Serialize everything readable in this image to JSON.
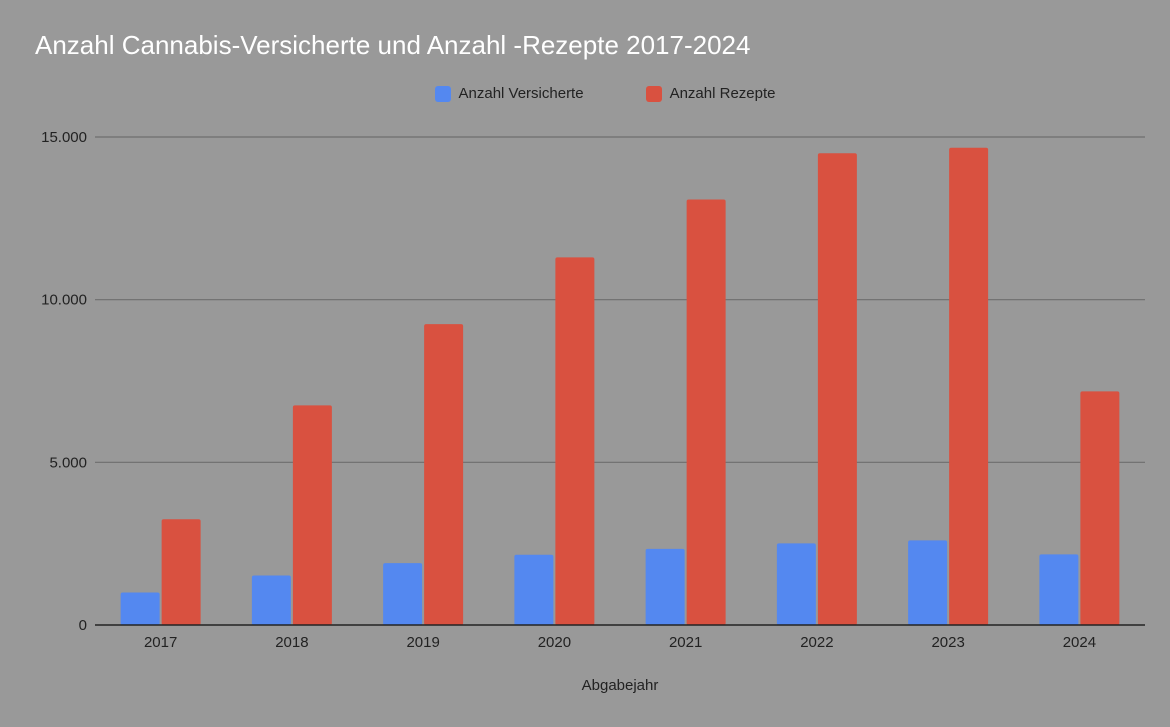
{
  "colors": {
    "background": "#999999",
    "versicherte": "#5488f0",
    "rezepte": "#d95140",
    "grid": "#6e6e6e",
    "axis": "#222222",
    "text": "#222222",
    "title": "#ffffff"
  },
  "chart_data": {
    "type": "bar",
    "title": "Anzahl Cannabis-Versicherte und Anzahl -Rezepte 2017-2024",
    "xlabel": "Abgabejahr",
    "ylabel": "",
    "ylim": [
      0,
      15000
    ],
    "yticks": [
      0,
      5000,
      10000,
      15000
    ],
    "ytick_labels": [
      "0",
      "5.000",
      "10.000",
      "15.000"
    ],
    "grid": true,
    "legend_position": "top-center",
    "categories": [
      "2017",
      "2018",
      "2019",
      "2020",
      "2021",
      "2022",
      "2023",
      "2024"
    ],
    "series": [
      {
        "name": "Anzahl Versicherte",
        "values": [
          1000,
          1520,
          1900,
          2160,
          2340,
          2510,
          2600,
          2170
        ]
      },
      {
        "name": "Anzahl Rezepte",
        "values": [
          3250,
          6750,
          9250,
          11300,
          13080,
          14500,
          14670,
          7180
        ]
      }
    ]
  }
}
